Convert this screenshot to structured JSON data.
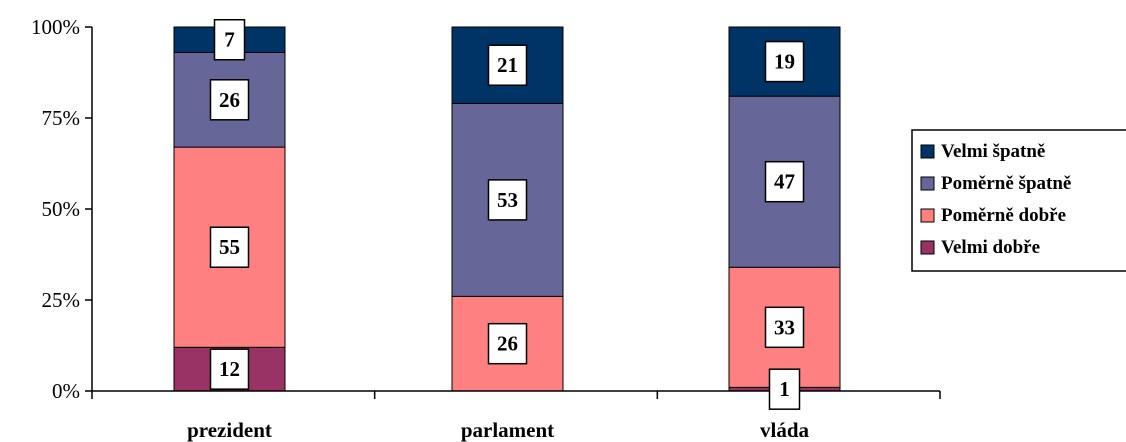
{
  "chart_data": {
    "type": "bar",
    "stacked": true,
    "normalized": true,
    "categories": [
      "prezident",
      "parlament",
      "vláda"
    ],
    "series": [
      {
        "name": "Velmi dobře",
        "values": [
          12,
          0,
          1
        ],
        "labels": [
          "12",
          "",
          "1"
        ],
        "color": "#993366"
      },
      {
        "name": "Poměrně dobře",
        "values": [
          55,
          26,
          33
        ],
        "labels": [
          "55",
          "26",
          "33"
        ],
        "color": "#ff8080"
      },
      {
        "name": "Poměrně špatně",
        "values": [
          26,
          53,
          47
        ],
        "labels": [
          "26",
          "53",
          "47"
        ],
        "color": "#666699"
      },
      {
        "name": "Velmi špatně",
        "values": [
          7,
          21,
          19
        ],
        "labels": [
          "7",
          "21",
          "19"
        ],
        "color": "#003366"
      }
    ],
    "y_ticks": [
      "0%",
      "25%",
      "50%",
      "75%",
      "100%"
    ],
    "ylim": [
      0,
      100
    ],
    "legend_position": "right",
    "legend_order": [
      "Velmi špatně",
      "Poměrně špatně",
      "Poměrně dobře",
      "Velmi dobře"
    ],
    "grid": false
  }
}
